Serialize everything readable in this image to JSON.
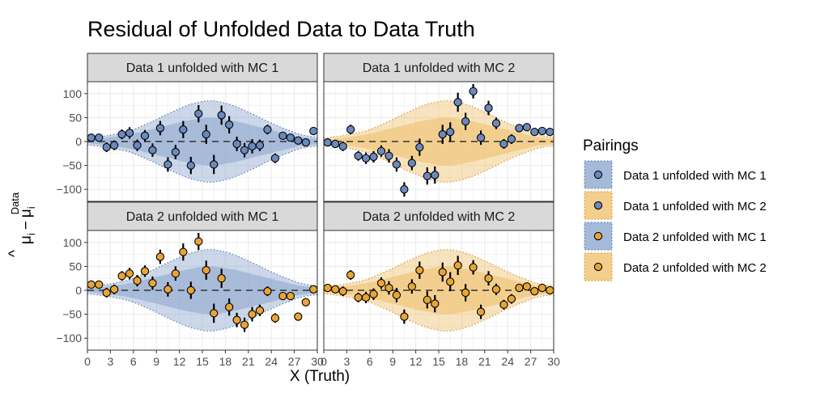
{
  "chart_data": {
    "type": "scatter",
    "title": "Residual of Unfolded Data to Data Truth",
    "xlabel": "X (Truth)",
    "ylabel": {
      "hat_base": "^",
      "hat_sub": "μ",
      "hat_index": "i",
      "minus": "−",
      "mu": "μ",
      "mu_sub": "i",
      "mu_sup": "Data"
    },
    "xlim": [
      0,
      30
    ],
    "ylim": [
      -125,
      125
    ],
    "x_ticks": [
      0,
      3,
      6,
      9,
      12,
      15,
      18,
      21,
      24,
      27,
      30
    ],
    "y_ticks": [
      100,
      50,
      0,
      -50,
      -100
    ],
    "grid": true,
    "reference_line": 0,
    "legend": {
      "title": "Pairings",
      "position": "right"
    },
    "colors": {
      "mc1_fill": "#8fa8cf",
      "mc2_fill": "#f0c270",
      "data1_point": "#6a8abf",
      "data2_point": "#e8a535",
      "outline": "#000000",
      "panel_border": "#333333",
      "strip_bg": "#d9d9d9",
      "gridline": "#ebebeb"
    },
    "bin_centers": [
      0.5,
      1.5,
      2.5,
      3.5,
      4.5,
      5.5,
      6.5,
      7.5,
      8.5,
      9.5,
      10.5,
      11.5,
      12.5,
      13.5,
      14.5,
      15.5,
      16.5,
      17.5,
      18.5,
      19.5,
      20.5,
      21.5,
      22.5,
      23.5,
      24.5,
      25.5,
      26.5,
      27.5,
      28.5,
      29.5
    ],
    "panels": [
      {
        "strip": "Data 1 unfolded with MC 1",
        "series": "Data 1 unfolded with MC 1",
        "data": "data1",
        "mc": "mc1",
        "y": [
          8,
          8,
          -12,
          -8,
          15,
          18,
          -8,
          12,
          -18,
          28,
          -48,
          -22,
          25,
          -50,
          58,
          15,
          -48,
          55,
          35,
          -5,
          -18,
          -10,
          -8,
          25,
          -35,
          12,
          8,
          2,
          -2,
          22
        ],
        "err": [
          8,
          8,
          10,
          10,
          10,
          12,
          12,
          12,
          14,
          15,
          15,
          15,
          18,
          18,
          18,
          20,
          20,
          20,
          18,
          15,
          15,
          15,
          12,
          10,
          10,
          8,
          8,
          8,
          8,
          8
        ],
        "band_outer": [
          8,
          10,
          12,
          15,
          18,
          22,
          28,
          35,
          42,
          50,
          58,
          65,
          72,
          78,
          82,
          85,
          85,
          82,
          78,
          72,
          65,
          58,
          50,
          42,
          35,
          28,
          22,
          16,
          12,
          10
        ],
        "band_inner": [
          4,
          6,
          8,
          10,
          12,
          15,
          18,
          22,
          26,
          30,
          34,
          38,
          42,
          45,
          48,
          50,
          50,
          48,
          45,
          42,
          38,
          34,
          30,
          26,
          22,
          18,
          14,
          10,
          8,
          6
        ]
      },
      {
        "strip": "Data 1 unfolded with MC 2",
        "series": "Data 1 unfolded with MC 2",
        "data": "data1",
        "mc": "mc2",
        "y": [
          -2,
          -5,
          -10,
          25,
          -30,
          -35,
          -32,
          -20,
          -30,
          -48,
          -100,
          -45,
          -12,
          -72,
          -70,
          15,
          20,
          82,
          42,
          105,
          8,
          70,
          38,
          -5,
          5,
          28,
          30,
          20,
          22,
          20
        ],
        "err": [
          8,
          8,
          10,
          10,
          10,
          12,
          12,
          12,
          14,
          15,
          15,
          15,
          18,
          18,
          18,
          20,
          20,
          20,
          18,
          15,
          15,
          15,
          12,
          10,
          10,
          8,
          8,
          8,
          8,
          8
        ],
        "band_outer": [
          8,
          10,
          12,
          15,
          18,
          22,
          28,
          35,
          42,
          50,
          58,
          65,
          72,
          78,
          82,
          85,
          85,
          82,
          78,
          72,
          65,
          58,
          50,
          42,
          35,
          28,
          22,
          16,
          12,
          10
        ],
        "band_inner": [
          4,
          6,
          8,
          10,
          12,
          15,
          18,
          22,
          26,
          30,
          34,
          38,
          42,
          45,
          48,
          50,
          50,
          48,
          45,
          42,
          38,
          34,
          30,
          26,
          22,
          18,
          14,
          10,
          8,
          6
        ]
      },
      {
        "strip": "Data 2 unfolded with MC 1",
        "series": "Data 2 unfolded with MC 1",
        "data": "data2",
        "mc": "mc1",
        "y": [
          12,
          12,
          -5,
          2,
          30,
          35,
          20,
          40,
          15,
          70,
          2,
          35,
          80,
          0,
          102,
          42,
          -48,
          25,
          -35,
          -62,
          -72,
          -50,
          -42,
          -2,
          -58,
          -12,
          -12,
          -55,
          -25,
          2
        ],
        "err": [
          8,
          8,
          10,
          10,
          10,
          12,
          12,
          12,
          14,
          15,
          15,
          15,
          18,
          18,
          18,
          20,
          20,
          20,
          18,
          15,
          15,
          15,
          12,
          10,
          10,
          8,
          8,
          8,
          8,
          8
        ],
        "band_outer": [
          8,
          10,
          12,
          15,
          18,
          22,
          28,
          35,
          42,
          50,
          58,
          65,
          72,
          78,
          82,
          85,
          85,
          82,
          78,
          72,
          65,
          58,
          50,
          42,
          35,
          28,
          22,
          16,
          12,
          10
        ],
        "band_inner": [
          4,
          6,
          8,
          10,
          12,
          15,
          18,
          22,
          26,
          30,
          34,
          38,
          42,
          45,
          48,
          50,
          50,
          48,
          45,
          42,
          38,
          34,
          30,
          26,
          22,
          18,
          14,
          10,
          8,
          6
        ]
      },
      {
        "strip": "Data 2 unfolded with MC 2",
        "series": "Data 2 unfolded with MC 2",
        "data": "data2",
        "mc": "mc2",
        "y": [
          5,
          2,
          -2,
          32,
          -15,
          -15,
          -8,
          15,
          5,
          -10,
          -55,
          8,
          42,
          -20,
          -28,
          38,
          18,
          52,
          -5,
          48,
          -45,
          25,
          2,
          -30,
          -18,
          5,
          8,
          -2,
          5,
          0
        ],
        "err": [
          8,
          8,
          10,
          10,
          10,
          12,
          12,
          12,
          14,
          15,
          15,
          15,
          18,
          18,
          18,
          20,
          20,
          20,
          18,
          15,
          15,
          15,
          12,
          10,
          10,
          8,
          8,
          8,
          8,
          8
        ],
        "band_outer": [
          8,
          10,
          12,
          15,
          18,
          22,
          28,
          35,
          42,
          50,
          58,
          65,
          72,
          78,
          82,
          85,
          85,
          82,
          78,
          72,
          65,
          58,
          50,
          42,
          35,
          28,
          22,
          16,
          12,
          10
        ],
        "band_inner": [
          4,
          6,
          8,
          10,
          12,
          15,
          18,
          22,
          26,
          30,
          34,
          38,
          42,
          45,
          48,
          50,
          50,
          48,
          45,
          42,
          38,
          34,
          30,
          26,
          22,
          18,
          14,
          10,
          8,
          6
        ]
      }
    ],
    "legend_entries": [
      {
        "label": "Data 1 unfolded with MC 1",
        "fill": "mc1",
        "point": "data1"
      },
      {
        "label": "Data 1 unfolded with MC 2",
        "fill": "mc2",
        "point": "data1"
      },
      {
        "label": "Data 2 unfolded with MC 1",
        "fill": "mc1",
        "point": "data2"
      },
      {
        "label": "Data 2 unfolded with MC 2",
        "fill": "mc2",
        "point": "data2"
      }
    ]
  }
}
